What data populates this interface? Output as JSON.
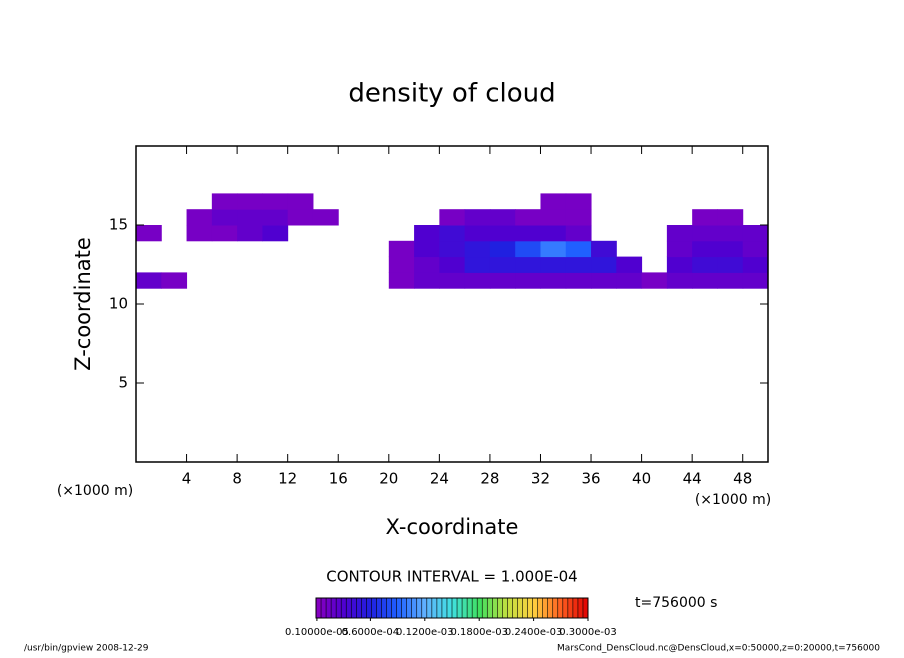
{
  "chart_data": {
    "type": "heatmap",
    "title": "density of cloud",
    "x_label": "X-coordinate",
    "y_label": "Z-coordinate",
    "x_unit": "(×1000 m)",
    "y_unit": "(×1000 m)",
    "x": [
      1,
      3,
      5,
      7,
      9,
      11,
      13,
      15,
      17,
      19,
      21,
      23,
      25,
      27,
      29,
      31,
      33,
      35,
      37,
      39,
      41,
      43,
      45,
      47,
      49
    ],
    "y": [
      11.5,
      12.5,
      13.5,
      14.5,
      15.5,
      16.5
    ],
    "values": [
      [
        2e-05,
        1e-05,
        null,
        null,
        null,
        null,
        null,
        null,
        null,
        null,
        1e-05,
        2e-05,
        2e-05,
        2e-05,
        2e-05,
        2e-05,
        2e-05,
        2e-05,
        2e-05,
        2e-05,
        1e-05,
        2e-05,
        2e-05,
        2e-05,
        2e-05
      ],
      [
        null,
        null,
        null,
        null,
        null,
        null,
        null,
        null,
        null,
        null,
        1e-05,
        2e-05,
        3e-05,
        5e-05,
        5e-05,
        5e-05,
        5e-05,
        5e-05,
        5e-05,
        3e-05,
        null,
        3e-05,
        4e-05,
        4e-05,
        3e-05
      ],
      [
        null,
        null,
        null,
        null,
        null,
        null,
        null,
        null,
        null,
        null,
        1e-05,
        3e-05,
        4e-05,
        5e-05,
        6e-05,
        8e-05,
        0.0001,
        9e-05,
        4e-05,
        null,
        null,
        2e-05,
        3e-05,
        3e-05,
        2e-05
      ],
      [
        1e-05,
        null,
        1e-05,
        1e-05,
        2e-05,
        3e-05,
        null,
        null,
        null,
        null,
        null,
        3e-05,
        4e-05,
        3e-05,
        3e-05,
        3e-05,
        3e-05,
        2e-05,
        null,
        null,
        null,
        2e-05,
        2e-05,
        2e-05,
        2e-05
      ],
      [
        null,
        null,
        1e-05,
        2e-05,
        2e-05,
        2e-05,
        1e-05,
        1e-05,
        null,
        null,
        null,
        null,
        1e-05,
        2e-05,
        2e-05,
        1e-05,
        1e-05,
        1e-05,
        null,
        null,
        null,
        null,
        1e-05,
        1e-05,
        null
      ],
      [
        null,
        null,
        null,
        1e-05,
        1e-05,
        1e-05,
        1e-05,
        null,
        null,
        null,
        null,
        null,
        null,
        null,
        null,
        null,
        1e-05,
        1e-05,
        null,
        null,
        null,
        null,
        null,
        null,
        null
      ]
    ],
    "xlim": [
      0,
      50
    ],
    "ylim": [
      0,
      20
    ],
    "xticks": [
      4,
      8,
      12,
      16,
      20,
      24,
      28,
      32,
      36,
      40,
      44,
      48
    ],
    "yticks": [
      5,
      10,
      15
    ],
    "clim": [
      0,
      0.0003
    ],
    "colormap": [
      "#8a00c0",
      "#5000d0",
      "#2020e0",
      "#2060ff",
      "#60b0ff",
      "#40e0e0",
      "#40e060",
      "#c0e040",
      "#ffd040",
      "#ff6020",
      "#e00000"
    ],
    "cticks": [
      {
        "value": 1e-06,
        "label": "0.10000e-05"
      },
      {
        "value": 6e-05,
        "label": "0.6000e-04"
      },
      {
        "value": 0.00012,
        "label": "0.1200e-03"
      },
      {
        "value": 0.00018,
        "label": "0.1800e-03"
      },
      {
        "value": 0.00024,
        "label": "0.2400e-03"
      },
      {
        "value": 0.0003,
        "label": "0.3000e-03"
      }
    ],
    "contour_interval": "CONTOUR INTERVAL = 1.000E-04",
    "time": "t=756000 s",
    "footer_left": "/usr/bin/gpview   2008-12-29",
    "footer_right": "MarsCond_DensCloud.nc@DensCloud,x=0:50000,z=0:20000,t=756000"
  }
}
